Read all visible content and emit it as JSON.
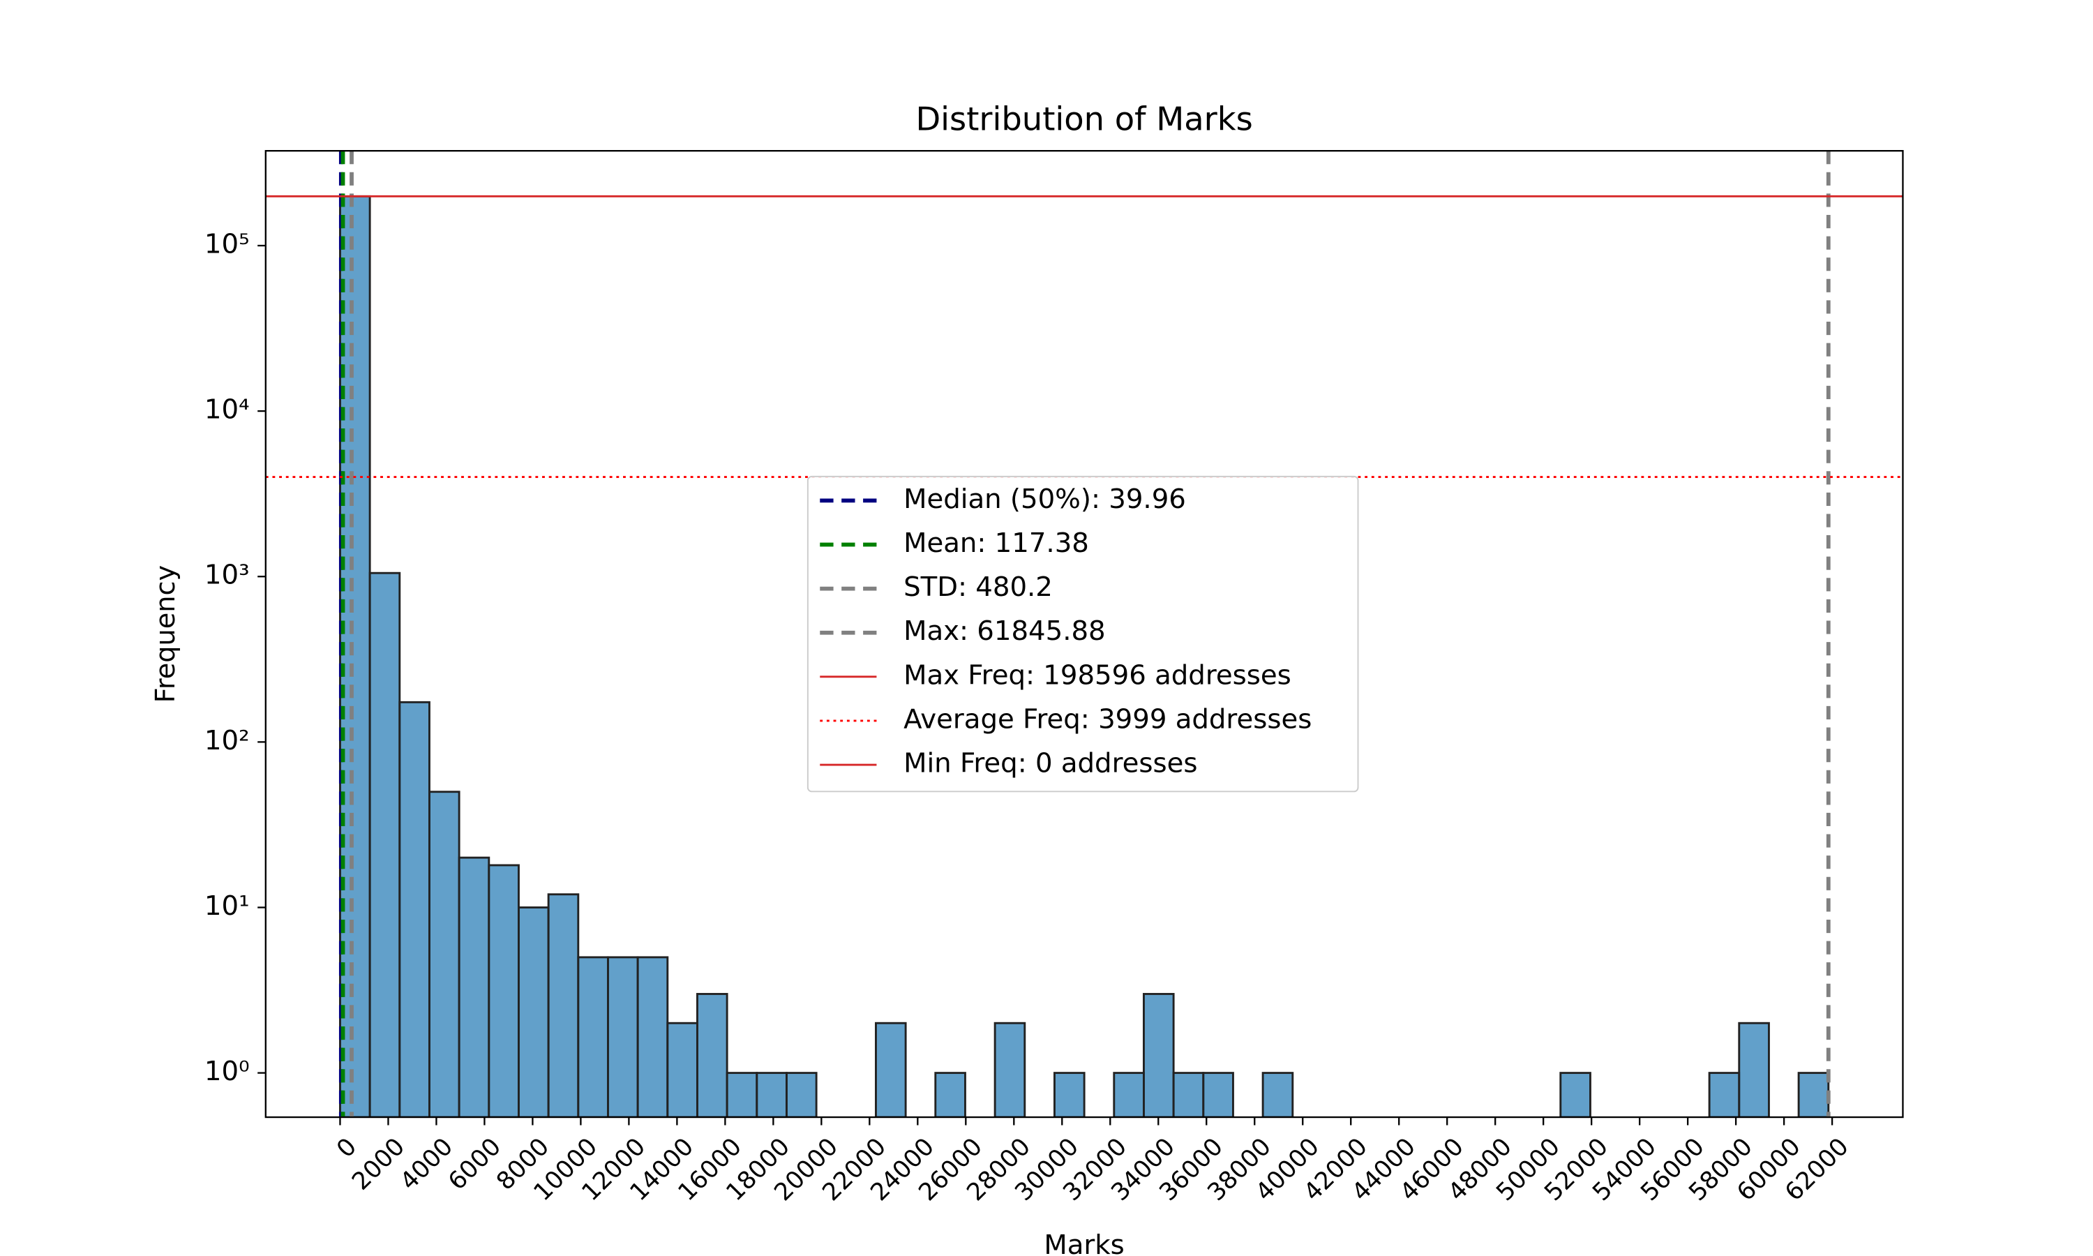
{
  "chart_data": {
    "type": "histogram",
    "title": "Distribution of Marks",
    "xlabel": "Marks",
    "ylabel": "Frequency",
    "bins": [
      0,
      1236.92,
      2473.84,
      3710.75,
      4947.67,
      6184.59,
      7421.51,
      8658.42,
      9895.34,
      11132.26,
      12369.18,
      13606.09,
      14843.01,
      16079.93,
      17316.85,
      18553.76,
      19790.68,
      21027.6,
      22264.52,
      23501.43,
      24738.35,
      25975.27,
      27212.19,
      28449.1,
      29686.02,
      30922.94,
      32159.86,
      33396.78,
      34633.69,
      35870.61,
      37107.53,
      38344.45,
      39581.36,
      40818.28,
      42055.2,
      43292.12,
      44529.03,
      45765.95,
      47002.87,
      48239.79,
      49476.7,
      50713.62,
      51950.54,
      53187.46,
      54424.37,
      55661.29,
      56898.21,
      58135.13,
      59372.04,
      60608.96,
      61845.88
    ],
    "values": [
      198596,
      1050,
      174,
      50,
      20,
      18,
      10,
      12,
      5,
      5,
      5,
      2,
      3,
      1,
      1,
      1,
      0,
      0,
      2,
      0,
      1,
      0,
      2,
      0,
      1,
      0,
      1,
      3,
      1,
      1,
      0,
      1,
      0,
      0,
      0,
      0,
      0,
      0,
      0,
      0,
      0,
      1,
      0,
      0,
      0,
      0,
      1,
      2,
      0,
      1
    ],
    "color": "#1f77b4",
    "edgecolor": "#222222",
    "log_y": true,
    "xlim": [
      -3092.29,
      64938.17
    ],
    "ylim": [
      0.54,
      374000
    ],
    "xticks": [
      0,
      2000,
      4000,
      6000,
      8000,
      10000,
      12000,
      14000,
      16000,
      18000,
      20000,
      22000,
      24000,
      26000,
      28000,
      30000,
      32000,
      34000,
      36000,
      38000,
      40000,
      42000,
      44000,
      46000,
      48000,
      50000,
      52000,
      54000,
      56000,
      58000,
      60000,
      62000
    ],
    "yticks": [
      {
        "value": 1,
        "label": "10⁰"
      },
      {
        "value": 10,
        "label": "10¹"
      },
      {
        "value": 100,
        "label": "10²"
      },
      {
        "value": 1000,
        "label": "10³"
      },
      {
        "value": 10000,
        "label": "10⁴"
      },
      {
        "value": 100000,
        "label": "10⁵"
      }
    ],
    "reference_lines": [
      {
        "label": "Median (50%): 39.96",
        "value": 39.96,
        "orientation": "vertical",
        "color": "#000080",
        "style": "dashed"
      },
      {
        "label": "Mean: 117.38",
        "value": 117.38,
        "orientation": "vertical",
        "color": "#008000",
        "style": "dashed"
      },
      {
        "label": "STD: 480.2",
        "value": 480.2,
        "orientation": "vertical",
        "color": "#808080",
        "style": "dashed"
      },
      {
        "label": "Max: 61845.88",
        "value": 61845.88,
        "orientation": "vertical",
        "color": "#808080",
        "style": "dashed"
      },
      {
        "label": "Max Freq: 198596 addresses",
        "value": 198596,
        "orientation": "horizontal",
        "color": "#d62728",
        "style": "solid"
      },
      {
        "label": "Average Freq: 3999 addresses",
        "value": 3999,
        "orientation": "horizontal",
        "color": "#ff0000",
        "style": "dotted"
      },
      {
        "label": "Min Freq: 0 addresses",
        "value": 0,
        "orientation": "horizontal",
        "color": "#d62728",
        "style": "solid"
      }
    ]
  }
}
